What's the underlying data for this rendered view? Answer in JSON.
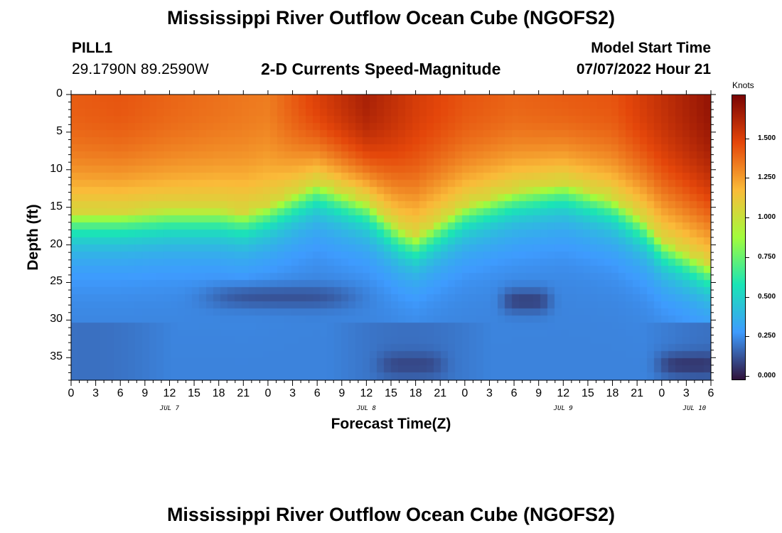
{
  "header": {
    "title": "Mississippi River Outflow Ocean Cube (NGOFS2)",
    "station": "PILL1",
    "coords": "29.1790N  89.2590W",
    "subtitle": "2-D Currents Speed-Magnitude",
    "model_start_label": "Model Start Time",
    "model_start_value": "07/07/2022 Hour 21"
  },
  "footer": {
    "title": "Mississippi River Outflow Ocean Cube (NGOFS2)"
  },
  "colorbar": {
    "unit": "Knots",
    "ticks": [
      "1.500",
      "1.250",
      "1.000",
      "0.750",
      "0.500",
      "0.250",
      "0.000"
    ],
    "colors": [
      "#30123b",
      "#3e9bfe",
      "#1ae4b6",
      "#a2fc3c",
      "#fabb39",
      "#e4460a",
      "#7a0403"
    ]
  },
  "chart_data": {
    "type": "heatmap",
    "title": "2-D Currents Speed-Magnitude",
    "xlabel": "Forecast Time(Z)",
    "ylabel": "Depth (ft)",
    "x_ticks": [
      "0",
      "3",
      "6",
      "9",
      "12",
      "15",
      "18",
      "21",
      "0",
      "3",
      "6",
      "9",
      "12",
      "15",
      "18",
      "21",
      "0",
      "3",
      "6",
      "9",
      "12",
      "15",
      "18",
      "21",
      "0",
      "3",
      "6"
    ],
    "date_labels": [
      "JUL 7",
      "JUL 8",
      "JUL 9",
      "JUL 10"
    ],
    "y_ticks": [
      "0",
      "5",
      "10",
      "15",
      "20",
      "25",
      "30",
      "35"
    ],
    "xlim_hours": [
      0,
      78
    ],
    "ylim": [
      38,
      0
    ],
    "value_range": [
      0,
      1.75
    ],
    "value_unit": "Knots",
    "surface_speed_by_hour": [
      [
        0,
        1.4
      ],
      [
        6,
        1.42
      ],
      [
        12,
        1.38
      ],
      [
        18,
        1.35
      ],
      [
        24,
        1.32
      ],
      [
        30,
        1.48
      ],
      [
        36,
        1.62
      ],
      [
        42,
        1.5
      ],
      [
        48,
        1.42
      ],
      [
        54,
        1.38
      ],
      [
        60,
        1.4
      ],
      [
        66,
        1.42
      ],
      [
        72,
        1.55
      ],
      [
        78,
        1.68
      ]
    ],
    "bottom_of_fast_layer_ft_by_hour": [
      [
        0,
        15
      ],
      [
        6,
        15
      ],
      [
        12,
        14.5
      ],
      [
        18,
        14.5
      ],
      [
        21,
        15
      ],
      [
        24,
        14
      ],
      [
        30,
        11
      ],
      [
        36,
        13.5
      ],
      [
        40,
        17
      ],
      [
        42,
        18
      ],
      [
        48,
        14
      ],
      [
        54,
        12
      ],
      [
        60,
        11
      ],
      [
        66,
        13
      ],
      [
        70,
        16
      ],
      [
        72,
        18.5
      ],
      [
        78,
        22
      ]
    ],
    "low_speed_cores": [
      {
        "hour_range": [
          18,
          33
        ],
        "depth_ft": 27,
        "speed": 0.1
      },
      {
        "hour_range": [
          54,
          57
        ],
        "depth_ft": 27.5,
        "speed": 0.05
      },
      {
        "hour_range": [
          39,
          44
        ],
        "depth_ft": 36,
        "speed": 0.08
      },
      {
        "hour_range": [
          73,
          78
        ],
        "depth_ft": 36,
        "speed": 0.03
      }
    ]
  }
}
